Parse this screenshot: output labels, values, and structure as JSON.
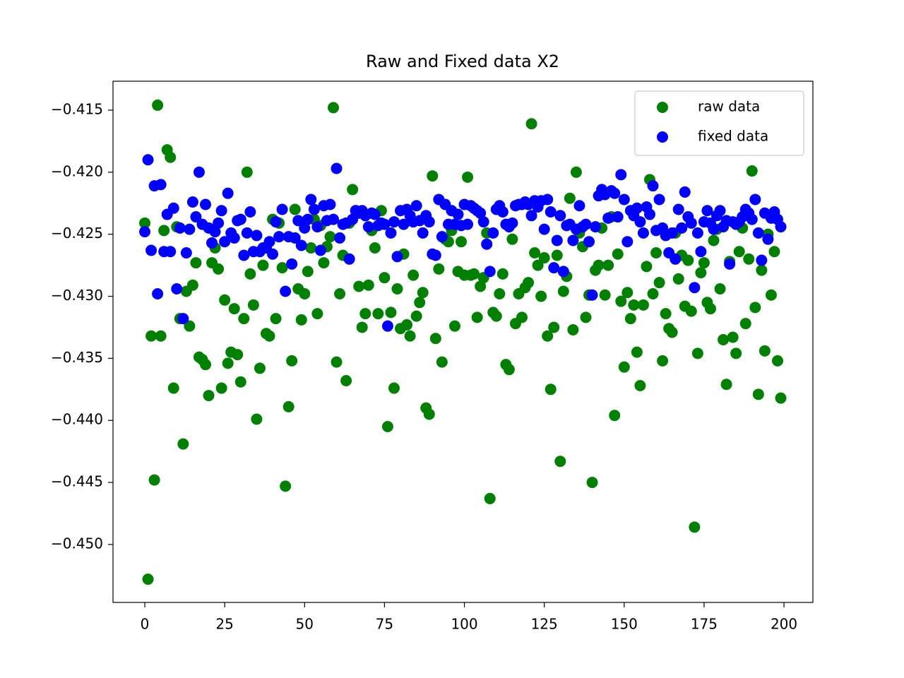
{
  "chart_data": {
    "type": "scatter",
    "title": "Raw and Fixed data X2",
    "x": [
      0,
      1,
      2,
      3,
      4,
      5,
      6,
      7,
      8,
      9,
      10,
      11,
      12,
      13,
      14,
      15,
      16,
      17,
      18,
      19,
      20,
      21,
      22,
      23,
      24,
      25,
      26,
      27,
      28,
      29,
      30,
      31,
      32,
      33,
      34,
      35,
      36,
      37,
      38,
      39,
      40,
      41,
      42,
      43,
      44,
      45,
      46,
      47,
      48,
      49,
      50,
      51,
      52,
      53,
      54,
      55,
      56,
      57,
      58,
      59,
      60,
      61,
      62,
      63,
      64,
      65,
      66,
      67,
      68,
      69,
      70,
      71,
      72,
      73,
      74,
      75,
      76,
      77,
      78,
      79,
      80,
      81,
      82,
      83,
      84,
      85,
      86,
      87,
      88,
      89,
      90,
      91,
      92,
      93,
      94,
      95,
      96,
      97,
      98,
      99,
      100,
      101,
      102,
      103,
      104,
      105,
      106,
      107,
      108,
      109,
      110,
      111,
      112,
      113,
      114,
      115,
      116,
      117,
      118,
      119,
      120,
      121,
      122,
      123,
      124,
      125,
      126,
      127,
      128,
      129,
      130,
      131,
      132,
      133,
      134,
      135,
      136,
      137,
      138,
      139,
      140,
      141,
      142,
      143,
      144,
      145,
      146,
      147,
      148,
      149,
      150,
      151,
      152,
      153,
      154,
      155,
      156,
      157,
      158,
      159,
      160,
      161,
      162,
      163,
      164,
      165,
      166,
      167,
      168,
      169,
      170,
      171,
      172,
      173,
      174,
      175,
      176,
      177,
      178,
      179,
      180,
      181,
      182,
      183,
      184,
      185,
      186,
      187,
      188,
      189,
      190,
      191,
      192,
      193,
      194,
      195,
      196,
      197,
      198,
      199
    ],
    "series": [
      {
        "name": "raw data",
        "color": "#008000",
        "values": [
          -0.4241,
          -0.4528,
          -0.4332,
          -0.4448,
          -0.4146,
          -0.4332,
          -0.4247,
          -0.4182,
          -0.4188,
          -0.4374,
          -0.4244,
          -0.4318,
          -0.4419,
          -0.4296,
          -0.4324,
          -0.4291,
          -0.4273,
          -0.4349,
          -0.4351,
          -0.4355,
          -0.438,
          -0.4273,
          -0.4261,
          -0.4278,
          -0.4374,
          -0.4303,
          -0.4354,
          -0.4345,
          -0.431,
          -0.4347,
          -0.4369,
          -0.4318,
          -0.42,
          -0.4282,
          -0.4307,
          -0.4399,
          -0.4358,
          -0.4275,
          -0.433,
          -0.4332,
          -0.4238,
          -0.4318,
          -0.4241,
          -0.4277,
          -0.4453,
          -0.4389,
          -0.4352,
          -0.423,
          -0.4294,
          -0.4319,
          -0.4298,
          -0.428,
          -0.4261,
          -0.4238,
          -0.4314,
          -0.4243,
          -0.4273,
          -0.426,
          -0.4252,
          -0.4148,
          -0.4353,
          -0.4298,
          -0.4267,
          -0.4368,
          -0.4241,
          -0.4214,
          -0.4231,
          -0.4292,
          -0.4325,
          -0.4314,
          -0.4291,
          -0.4247,
          -0.4261,
          -0.4314,
          -0.4231,
          -0.4285,
          -0.4405,
          -0.4313,
          -0.4374,
          -0.4294,
          -0.4326,
          -0.4266,
          -0.4323,
          -0.4332,
          -0.4283,
          -0.4316,
          -0.4305,
          -0.4297,
          -0.439,
          -0.4395,
          -0.4203,
          -0.4334,
          -0.4278,
          -0.4353,
          -0.4254,
          -0.4256,
          -0.4247,
          -0.4324,
          -0.428,
          -0.4256,
          -0.4283,
          -0.4204,
          -0.4283,
          -0.4282,
          -0.4317,
          -0.4292,
          -0.4285,
          -0.4249,
          -0.4463,
          -0.4313,
          -0.4316,
          -0.4298,
          -0.4282,
          -0.4355,
          -0.4359,
          -0.4254,
          -0.4322,
          -0.4298,
          -0.4317,
          -0.4293,
          -0.4289,
          -0.4161,
          -0.4265,
          -0.4275,
          -0.43,
          -0.4269,
          -0.4332,
          -0.4375,
          -0.4325,
          -0.4267,
          -0.4433,
          -0.4296,
          -0.4284,
          -0.4221,
          -0.4327,
          -0.42,
          -0.4249,
          -0.426,
          -0.4317,
          -0.4299,
          -0.445,
          -0.4279,
          -0.4275,
          -0.4245,
          -0.4299,
          -0.4275,
          -0.4236,
          -0.4396,
          -0.4266,
          -0.4304,
          -0.4357,
          -0.4297,
          -0.4318,
          -0.4307,
          -0.4345,
          -0.4372,
          -0.4307,
          -0.4276,
          -0.4206,
          -0.4298,
          -0.4265,
          -0.4289,
          -0.4352,
          -0.4314,
          -0.4326,
          -0.4329,
          -0.4249,
          -0.4286,
          -0.4267,
          -0.4308,
          -0.4271,
          -0.4312,
          -0.4486,
          -0.4346,
          -0.4281,
          -0.4273,
          -0.4305,
          -0.431,
          -0.4255,
          -0.4246,
          -0.4294,
          -0.4335,
          -0.4371,
          -0.4272,
          -0.4333,
          -0.4346,
          -0.4264,
          -0.4245,
          -0.4322,
          -0.427,
          -0.4199,
          -0.4309,
          -0.4379,
          -0.4279,
          -0.4344,
          -0.425,
          -0.4299,
          -0.4264,
          -0.4352,
          -0.4382
        ]
      },
      {
        "name": "fixed data",
        "color": "#0000ff",
        "values": [
          -0.4248,
          -0.419,
          -0.4263,
          -0.4211,
          -0.4298,
          -0.421,
          -0.4264,
          -0.4234,
          -0.4264,
          -0.4229,
          -0.4294,
          -0.4245,
          -0.4318,
          -0.4265,
          -0.4246,
          -0.4224,
          -0.4236,
          -0.42,
          -0.4242,
          -0.4226,
          -0.4245,
          -0.4257,
          -0.4248,
          -0.4241,
          -0.4231,
          -0.4256,
          -0.4217,
          -0.4249,
          -0.4253,
          -0.4239,
          -0.4238,
          -0.4267,
          -0.4249,
          -0.4232,
          -0.4264,
          -0.4251,
          -0.4264,
          -0.4261,
          -0.4261,
          -0.4256,
          -0.4266,
          -0.424,
          -0.4252,
          -0.423,
          -0.4296,
          -0.4252,
          -0.4274,
          -0.4253,
          -0.4239,
          -0.4259,
          -0.4245,
          -0.4238,
          -0.4222,
          -0.423,
          -0.4244,
          -0.4263,
          -0.4227,
          -0.4239,
          -0.4226,
          -0.4238,
          -0.4197,
          -0.4253,
          -0.4242,
          -0.4241,
          -0.427,
          -0.4238,
          -0.4231,
          -0.4233,
          -0.4231,
          -0.4235,
          -0.4244,
          -0.4233,
          -0.4234,
          -0.4243,
          -0.4241,
          -0.4242,
          -0.4324,
          -0.4249,
          -0.424,
          -0.4268,
          -0.4231,
          -0.4242,
          -0.423,
          -0.4235,
          -0.424,
          -0.4227,
          -0.4239,
          -0.4249,
          -0.4235,
          -0.424,
          -0.4266,
          -0.4267,
          -0.4222,
          -0.4252,
          -0.4226,
          -0.4242,
          -0.4231,
          -0.4242,
          -0.4234,
          -0.4243,
          -0.4226,
          -0.4242,
          -0.4227,
          -0.4229,
          -0.4231,
          -0.4233,
          -0.424,
          -0.4258,
          -0.428,
          -0.4249,
          -0.423,
          -0.4227,
          -0.4232,
          -0.4242,
          -0.4244,
          -0.4241,
          -0.4227,
          -0.4226,
          -0.4226,
          -0.4224,
          -0.4226,
          -0.4235,
          -0.4223,
          -0.4228,
          -0.4223,
          -0.4246,
          -0.4222,
          -0.4232,
          -0.4277,
          -0.4255,
          -0.4235,
          -0.428,
          -0.4243,
          -0.4242,
          -0.4255,
          -0.4246,
          -0.4227,
          -0.4244,
          -0.4242,
          -0.4256,
          -0.4299,
          -0.4244,
          -0.4219,
          -0.4214,
          -0.4218,
          -0.4237,
          -0.4215,
          -0.4217,
          -0.4236,
          -0.4202,
          -0.4222,
          -0.4256,
          -0.4231,
          -0.4235,
          -0.4229,
          -0.424,
          -0.4249,
          -0.4228,
          -0.4234,
          -0.4211,
          -0.4247,
          -0.4222,
          -0.4245,
          -0.4251,
          -0.4265,
          -0.4249,
          -0.427,
          -0.423,
          -0.4245,
          -0.4216,
          -0.4236,
          -0.4241,
          -0.4293,
          -0.4249,
          -0.4264,
          -0.424,
          -0.4231,
          -0.4241,
          -0.4246,
          -0.4235,
          -0.4231,
          -0.4244,
          -0.4239,
          -0.4274,
          -0.424,
          -0.4242,
          -0.424,
          -0.4236,
          -0.423,
          -0.4233,
          -0.4238,
          -0.4222,
          -0.4249,
          -0.4271,
          -0.4233,
          -0.4254,
          -0.4237,
          -0.4232,
          -0.4238,
          -0.4244
        ]
      }
    ],
    "xlim": [
      -9.95,
      209.05
    ],
    "ylim": [
      -0.45467,
      -0.41267
    ],
    "xticks": [
      0,
      25,
      50,
      75,
      100,
      125,
      150,
      175,
      200
    ],
    "yticks": [
      {
        "value": -0.415,
        "label": "−0.415"
      },
      {
        "value": -0.42,
        "label": "−0.420"
      },
      {
        "value": -0.425,
        "label": "−0.425"
      },
      {
        "value": -0.43,
        "label": "−0.430"
      },
      {
        "value": -0.435,
        "label": "−0.435"
      },
      {
        "value": -0.44,
        "label": "−0.440"
      },
      {
        "value": -0.445,
        "label": "−0.445"
      },
      {
        "value": -0.45,
        "label": "−0.450"
      }
    ],
    "legend": "upper right",
    "grid": false
  }
}
